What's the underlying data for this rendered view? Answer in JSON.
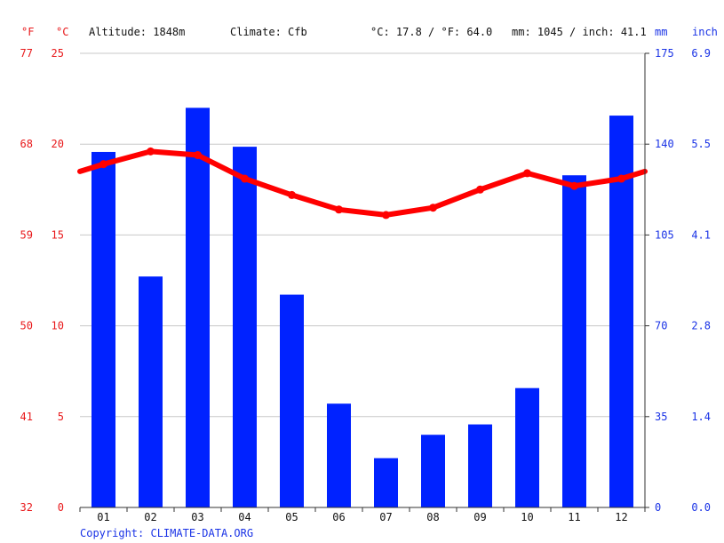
{
  "header": {
    "unit_f": "°F",
    "unit_c": "°C",
    "altitude": "Altitude: 1848m",
    "climate": "Climate: Cfb",
    "temp_avg": "°C: 17.8 / °F: 64.0",
    "precip_total": "mm: 1045 / inch: 41.1",
    "unit_mm": "mm",
    "unit_inch": "inch"
  },
  "footer": {
    "copyright": "Copyright: CLIMATE-DATA.ORG"
  },
  "colors": {
    "temperature": "#ff0000",
    "precipitation": "#0022ff",
    "left_axis": "#e8191b",
    "right_axis": "#1a33e6"
  },
  "chart_data": {
    "type": "bar",
    "categories": [
      "01",
      "02",
      "03",
      "04",
      "05",
      "06",
      "07",
      "08",
      "09",
      "10",
      "11",
      "12"
    ],
    "series": [
      {
        "type": "bar",
        "axis": "right",
        "values": [
          137,
          89,
          154,
          139,
          82,
          40,
          19,
          28,
          32,
          46,
          128,
          151
        ]
      },
      {
        "type": "line",
        "axis": "left",
        "values": [
          18.9,
          19.6,
          19.4,
          18.1,
          17.2,
          16.4,
          16.1,
          16.5,
          17.5,
          18.4,
          17.7,
          18.1
        ],
        "edge_start": 18.5,
        "edge_end": 18.5
      }
    ],
    "left_axis_c": {
      "ylim": [
        0,
        25
      ],
      "ticks": [
        "0",
        "5",
        "10",
        "15",
        "20",
        "25"
      ]
    },
    "left_axis_f": {
      "ticks": [
        "32",
        "41",
        "50",
        "59",
        "68",
        "77"
      ]
    },
    "right_axis_mm": {
      "ylim": [
        0,
        175
      ],
      "ticks": [
        "0",
        "35",
        "70",
        "105",
        "140",
        "175"
      ]
    },
    "right_axis_inch": {
      "ticks": [
        "0.0",
        "1.4",
        "2.8",
        "4.1",
        "5.5",
        "6.9"
      ]
    },
    "grid": true
  }
}
